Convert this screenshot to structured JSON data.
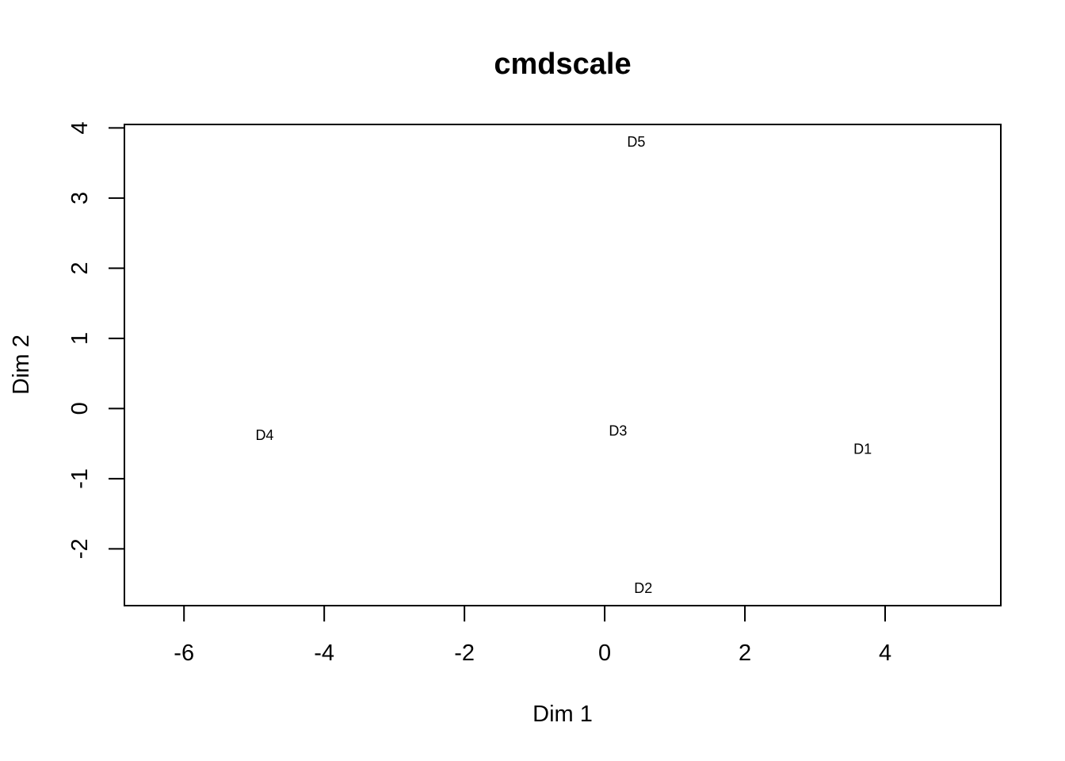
{
  "chart_data": {
    "type": "scatter",
    "title": "cmdscale",
    "xlabel": "Dim 1",
    "ylabel": "Dim 2",
    "xlim": [
      -6.85,
      5.65
    ],
    "ylim": [
      -2.81,
      4.05
    ],
    "x_ticks": [
      -6,
      -4,
      -2,
      0,
      2,
      4
    ],
    "y_ticks": [
      -2,
      -1,
      0,
      1,
      2,
      3,
      4
    ],
    "x_tick_labels": [
      "-6",
      "-4",
      "-2",
      "0",
      "2",
      "4"
    ],
    "y_tick_labels": [
      "-2",
      "-1",
      "0",
      "1",
      "2",
      "3",
      "4"
    ],
    "grid": false,
    "legend": "none",
    "points": [
      {
        "label": "D1",
        "x": 3.68,
        "y": -0.58
      },
      {
        "label": "D2",
        "x": 0.55,
        "y": -2.56
      },
      {
        "label": "D3",
        "x": 0.19,
        "y": -0.32
      },
      {
        "label": "D4",
        "x": -4.85,
        "y": -0.38
      },
      {
        "label": "D5",
        "x": 0.45,
        "y": 3.8
      }
    ]
  }
}
